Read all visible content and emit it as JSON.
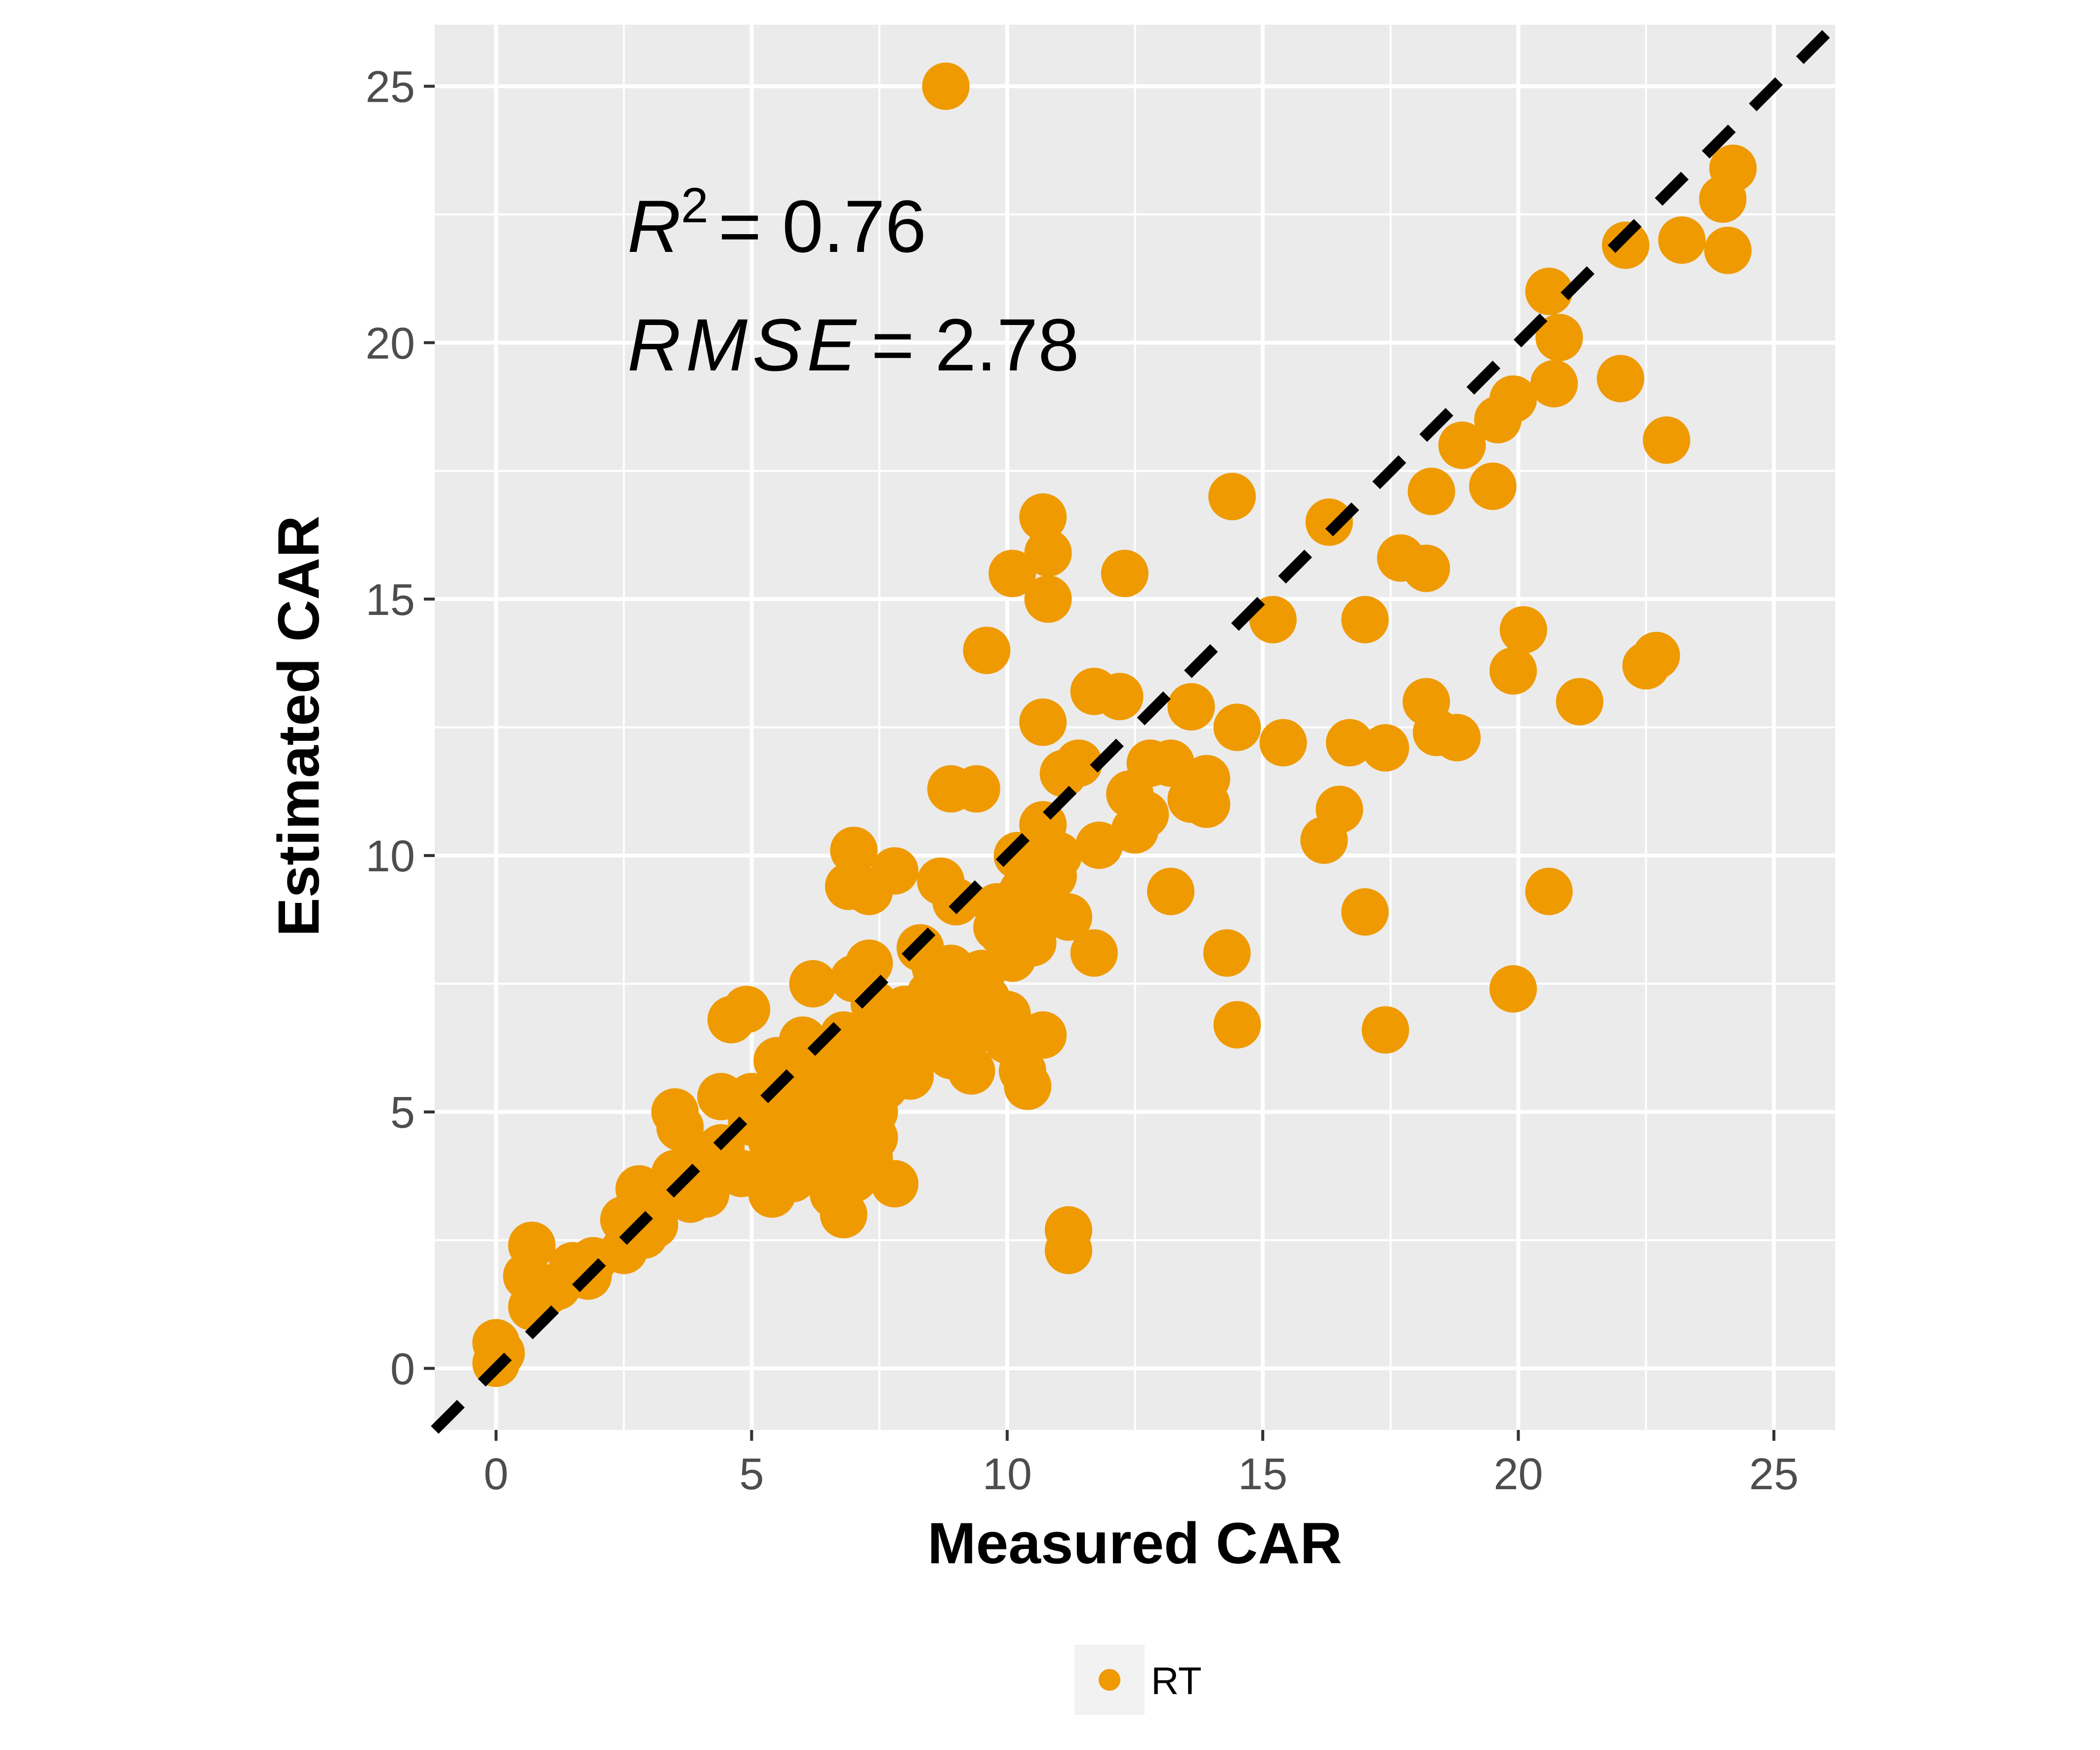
{
  "chart_data": {
    "type": "scatter",
    "title": "",
    "xlabel": "Measured CAR",
    "ylabel": "Estimated CAR",
    "xlim": [
      -1.2,
      26.2
    ],
    "ylim": [
      -1.2,
      26.2
    ],
    "xticks": [
      0,
      5,
      10,
      15,
      20,
      25
    ],
    "yticks": [
      0,
      5,
      10,
      15,
      20,
      25
    ],
    "x_tick_labels": [
      "0",
      "5",
      "10",
      "15",
      "20",
      "25"
    ],
    "y_tick_labels": [
      "0",
      "5",
      "10",
      "15",
      "20",
      "25"
    ],
    "grid": true,
    "reference_line": {
      "type": "identity",
      "style": "dashed",
      "color": "#000000"
    },
    "annotations": {
      "r2_symbol": "R",
      "r2_exponent": "2",
      "r2_value": "= 0.76",
      "rmse_symbol": "RMSE",
      "rmse_value": "= 2.78"
    },
    "legend": {
      "position": "bottom",
      "entries": [
        "RT"
      ]
    },
    "colors": {
      "panel": "#ebebeb",
      "grid": "#ffffff",
      "point": "#ef9a00"
    },
    "series": [
      {
        "name": "RT",
        "color": "#ef9a00",
        "points": [
          [
            8.8,
            25.0
          ],
          [
            24.2,
            23.4
          ],
          [
            24.0,
            22.8
          ],
          [
            22.1,
            21.9
          ],
          [
            23.2,
            22.0
          ],
          [
            24.1,
            21.8
          ],
          [
            20.6,
            21.0
          ],
          [
            20.8,
            20.1
          ],
          [
            20.7,
            19.2
          ],
          [
            22.0,
            19.3
          ],
          [
            19.9,
            18.9
          ],
          [
            19.6,
            18.5
          ],
          [
            18.9,
            18.0
          ],
          [
            22.9,
            18.1
          ],
          [
            18.3,
            17.1
          ],
          [
            19.5,
            17.2
          ],
          [
            14.4,
            17.0
          ],
          [
            16.3,
            16.5
          ],
          [
            17.7,
            15.8
          ],
          [
            18.2,
            15.6
          ],
          [
            10.7,
            16.6
          ],
          [
            10.8,
            15.9
          ],
          [
            10.1,
            15.5
          ],
          [
            12.3,
            15.5
          ],
          [
            10.8,
            15.0
          ],
          [
            15.2,
            14.6
          ],
          [
            17.0,
            14.6
          ],
          [
            20.1,
            14.4
          ],
          [
            9.6,
            14.0
          ],
          [
            19.9,
            13.6
          ],
          [
            22.5,
            13.7
          ],
          [
            22.7,
            13.9
          ],
          [
            21.2,
            13.0
          ],
          [
            18.2,
            13.0
          ],
          [
            11.7,
            13.2
          ],
          [
            12.2,
            13.1
          ],
          [
            13.6,
            12.9
          ],
          [
            10.7,
            12.6
          ],
          [
            14.5,
            12.5
          ],
          [
            18.4,
            12.4
          ],
          [
            18.8,
            12.3
          ],
          [
            15.4,
            12.2
          ],
          [
            16.7,
            12.2
          ],
          [
            17.4,
            12.1
          ],
          [
            11.4,
            11.8
          ],
          [
            11.1,
            11.6
          ],
          [
            12.8,
            11.8
          ],
          [
            13.2,
            11.8
          ],
          [
            13.9,
            11.5
          ],
          [
            13.6,
            11.1
          ],
          [
            13.9,
            11.0
          ],
          [
            12.4,
            11.2
          ],
          [
            12.7,
            10.8
          ],
          [
            16.5,
            10.9
          ],
          [
            16.2,
            10.3
          ],
          [
            12.5,
            10.5
          ],
          [
            11.8,
            10.2
          ],
          [
            10.7,
            10.6
          ],
          [
            11.0,
            10.0
          ],
          [
            10.2,
            10.0
          ],
          [
            10.4,
            9.7
          ],
          [
            10.9,
            9.6
          ],
          [
            7.0,
            10.1
          ],
          [
            7.8,
            9.7
          ],
          [
            8.7,
            9.5
          ],
          [
            6.9,
            9.4
          ],
          [
            7.3,
            9.3
          ],
          [
            9.0,
            9.1
          ],
          [
            8.9,
            11.3
          ],
          [
            9.4,
            11.3
          ],
          [
            13.2,
            9.3
          ],
          [
            20.6,
            9.3
          ],
          [
            17.0,
            8.9
          ],
          [
            11.2,
            8.8
          ],
          [
            10.6,
            8.8
          ],
          [
            9.8,
            8.6
          ],
          [
            10.5,
            8.3
          ],
          [
            8.3,
            8.2
          ],
          [
            10.1,
            8.0
          ],
          [
            14.3,
            8.1
          ],
          [
            11.7,
            8.1
          ],
          [
            7.3,
            7.9
          ],
          [
            8.9,
            7.8
          ],
          [
            9.5,
            7.7
          ],
          [
            7.0,
            7.6
          ],
          [
            6.2,
            7.5
          ],
          [
            19.9,
            7.4
          ],
          [
            4.9,
            7.0
          ],
          [
            4.6,
            6.8
          ],
          [
            10.7,
            6.5
          ],
          [
            10.0,
            6.4
          ],
          [
            14.5,
            6.7
          ],
          [
            17.4,
            6.6
          ],
          [
            6.0,
            6.4
          ],
          [
            8.4,
            6.3
          ],
          [
            5.5,
            6.0
          ],
          [
            7.6,
            6.2
          ],
          [
            9.3,
            5.8
          ],
          [
            8.1,
            5.7
          ],
          [
            10.4,
            5.5
          ],
          [
            10.3,
            5.8
          ],
          [
            4.4,
            5.3
          ],
          [
            5.0,
            5.3
          ],
          [
            6.3,
            5.4
          ],
          [
            7.6,
            5.5
          ],
          [
            6.6,
            5.7
          ],
          [
            8.1,
            6.0
          ],
          [
            3.5,
            5.0
          ],
          [
            3.6,
            4.7
          ],
          [
            5.0,
            4.8
          ],
          [
            5.5,
            4.6
          ],
          [
            6.1,
            4.4
          ],
          [
            6.8,
            4.7
          ],
          [
            7.4,
            4.5
          ],
          [
            7.0,
            4.2
          ],
          [
            4.4,
            4.3
          ],
          [
            4.0,
            4.1
          ],
          [
            5.6,
            4.0
          ],
          [
            6.5,
            4.0
          ],
          [
            7.3,
            4.1
          ],
          [
            3.5,
            3.8
          ],
          [
            3.8,
            3.6
          ],
          [
            4.8,
            3.8
          ],
          [
            5.8,
            3.7
          ],
          [
            6.8,
            3.9
          ],
          [
            7.8,
            3.6
          ],
          [
            4.1,
            3.4
          ],
          [
            5.4,
            3.4
          ],
          [
            6.6,
            3.4
          ],
          [
            2.8,
            3.5
          ],
          [
            3.2,
            3.2
          ],
          [
            3.8,
            3.3
          ],
          [
            2.5,
            2.9
          ],
          [
            3.1,
            2.8
          ],
          [
            2.9,
            2.6
          ],
          [
            6.8,
            3.0
          ],
          [
            11.2,
            2.7
          ],
          [
            11.2,
            2.3
          ],
          [
            1.9,
            2.1
          ],
          [
            1.5,
            2.0
          ],
          [
            2.5,
            2.3
          ],
          [
            0.7,
            2.4
          ],
          [
            0.6,
            1.8
          ],
          [
            1.2,
            1.6
          ],
          [
            1.8,
            1.8
          ],
          [
            0.7,
            1.2
          ],
          [
            1.0,
            1.5
          ],
          [
            0.0,
            0.5
          ],
          [
            0.1,
            0.3
          ],
          [
            0.0,
            0.1
          ],
          [
            5.2,
            5.0
          ],
          [
            5.9,
            5.2
          ],
          [
            6.4,
            5.6
          ],
          [
            6.9,
            6.1
          ],
          [
            7.5,
            6.6
          ],
          [
            8.0,
            7.0
          ],
          [
            8.5,
            7.3
          ],
          [
            9.0,
            7.6
          ],
          [
            6.2,
            5.0
          ],
          [
            6.7,
            5.3
          ],
          [
            7.2,
            5.8
          ],
          [
            7.8,
            6.4
          ],
          [
            8.3,
            6.9
          ],
          [
            8.8,
            7.2
          ],
          [
            9.3,
            7.0
          ],
          [
            5.7,
            4.3
          ],
          [
            6.4,
            4.8
          ],
          [
            7.1,
            5.2
          ],
          [
            7.7,
            5.9
          ],
          [
            8.2,
            6.5
          ],
          [
            6.0,
            5.9
          ],
          [
            6.8,
            6.5
          ],
          [
            7.4,
            7.1
          ],
          [
            8.6,
            7.8
          ],
          [
            9.6,
            7.2
          ],
          [
            10.0,
            6.9
          ],
          [
            9.4,
            6.6
          ],
          [
            8.9,
            6.1
          ],
          [
            7.0,
            5.6
          ],
          [
            6.5,
            6.2
          ],
          [
            5.4,
            4.4
          ],
          [
            6.0,
            4.7
          ],
          [
            7.4,
            5.0
          ],
          [
            6.3,
            3.8
          ],
          [
            7.0,
            3.7
          ],
          [
            8.7,
            6.8
          ],
          [
            9.8,
            9.0
          ],
          [
            9.9,
            8.5
          ],
          [
            10.3,
            9.3
          ]
        ]
      }
    ]
  }
}
